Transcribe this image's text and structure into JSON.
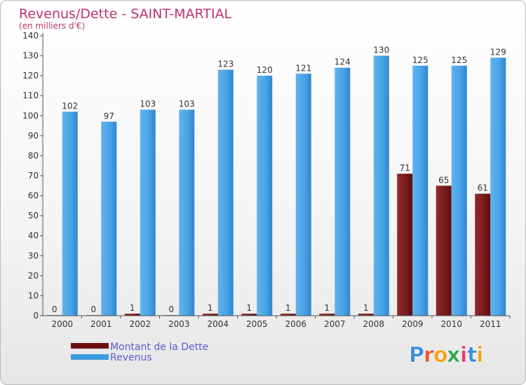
{
  "chart_data": {
    "type": "bar",
    "title": "Revenus/Dette - SAINT-MARTIAL",
    "subtitle": "(en milliers d'€)",
    "categories": [
      "2000",
      "2001",
      "2002",
      "2003",
      "2004",
      "2005",
      "2006",
      "2007",
      "2008",
      "2009",
      "2010",
      "2011"
    ],
    "series": [
      {
        "name": "Montant de la Dette",
        "values": [
          0,
          0,
          1,
          0,
          1,
          1,
          1,
          1,
          1,
          71,
          65,
          61
        ],
        "color": "#7a1a1a"
      },
      {
        "name": "Revenus",
        "values": [
          102,
          97,
          103,
          103,
          123,
          120,
          121,
          124,
          130,
          125,
          125,
          129
        ],
        "color": "#3d9be0"
      }
    ],
    "ylim": [
      0,
      140
    ],
    "yticks": [
      0,
      10,
      20,
      30,
      40,
      50,
      60,
      70,
      80,
      90,
      100,
      110,
      120,
      130,
      140
    ],
    "grid": false,
    "legend_position": "bottom-left"
  },
  "logo": {
    "letters": [
      "P",
      "r",
      "o",
      "x",
      "i",
      "t",
      "i"
    ],
    "colors": [
      "#3a8fd8",
      "#e8542a",
      "#f1a21a",
      "#2ba84a",
      "#e83a6a",
      "#3a8fd8",
      "#f1a21a"
    ]
  }
}
